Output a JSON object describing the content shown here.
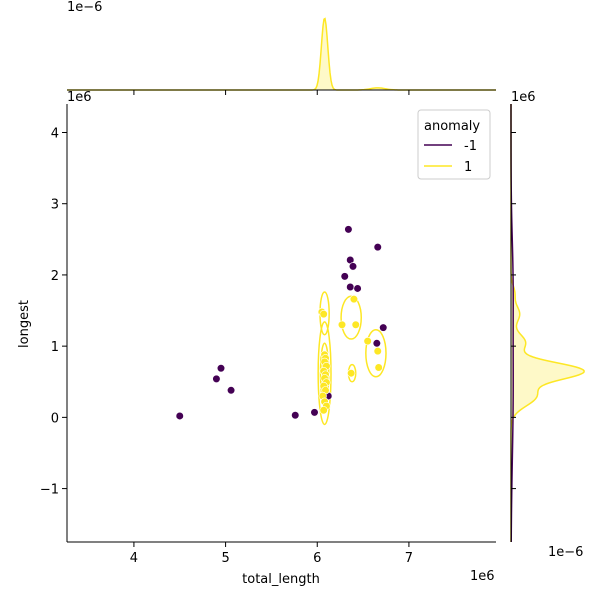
{
  "chart_data": {
    "type": "scatter",
    "xlabel": "total_length",
    "ylabel": "longest",
    "x_scale_label": "1e6",
    "y_scale_label": "1e6",
    "top_marg_scale_label": "1e−6",
    "right_marg_top_label": "1e6",
    "right_marg_scale_label": "1e−6",
    "xlim": [
      3.27,
      7.95
    ],
    "ylim": [
      -1.75,
      4.4
    ],
    "x_ticks": [
      4,
      5,
      6,
      7
    ],
    "x_tick_labels": [
      "4",
      "5",
      "6",
      "7"
    ],
    "y_ticks": [
      -1,
      0,
      1,
      2,
      3,
      4
    ],
    "y_tick_labels": [
      "−1",
      "0",
      "1",
      "2",
      "3",
      "4"
    ],
    "legend": {
      "title": "anomaly",
      "placement": "top-right",
      "entries": [
        {
          "label": "-1",
          "color": "#440154"
        },
        {
          "label": "1",
          "color": "#fde725"
        }
      ]
    },
    "series": [
      {
        "name": "-1",
        "color": "#440154",
        "points": [
          [
            4.5,
            0.02
          ],
          [
            4.9,
            0.54
          ],
          [
            4.95,
            0.69
          ],
          [
            5.06,
            0.38
          ],
          [
            5.76,
            0.03
          ],
          [
            5.97,
            0.07
          ],
          [
            6.12,
            0.3
          ],
          [
            6.3,
            1.98
          ],
          [
            6.34,
            2.64
          ],
          [
            6.36,
            2.21
          ],
          [
            6.39,
            2.12
          ],
          [
            6.36,
            1.83
          ],
          [
            6.44,
            1.81
          ],
          [
            6.66,
            2.39
          ],
          [
            6.65,
            1.04
          ],
          [
            6.72,
            1.26
          ]
        ]
      },
      {
        "name": "1",
        "color": "#fde725",
        "points": [
          [
            6.05,
            1.48
          ],
          [
            6.07,
            1.45
          ],
          [
            6.08,
            0.88
          ],
          [
            6.09,
            0.83
          ],
          [
            6.08,
            0.78
          ],
          [
            6.1,
            0.72
          ],
          [
            6.07,
            0.65
          ],
          [
            6.09,
            0.6
          ],
          [
            6.08,
            0.55
          ],
          [
            6.1,
            0.49
          ],
          [
            6.07,
            0.44
          ],
          [
            6.09,
            0.38
          ],
          [
            6.06,
            0.3
          ],
          [
            6.08,
            0.22
          ],
          [
            6.1,
            0.16
          ],
          [
            6.07,
            0.1
          ],
          [
            6.27,
            1.3
          ],
          [
            6.4,
            1.66
          ],
          [
            6.42,
            1.3
          ],
          [
            6.37,
            0.62
          ],
          [
            6.55,
            1.07
          ],
          [
            6.66,
            0.93
          ],
          [
            6.67,
            0.7
          ]
        ]
      }
    ],
    "kde_contours": [
      {
        "series": "1",
        "cx": 6.08,
        "cy": 0.62,
        "rx": 0.07,
        "ry": 0.72
      },
      {
        "series": "1",
        "cx": 6.08,
        "cy": 0.62,
        "rx": 0.045,
        "ry": 0.42
      },
      {
        "series": "1",
        "cx": 6.08,
        "cy": 0.62,
        "rx": 0.025,
        "ry": 0.24
      },
      {
        "series": "1",
        "cx": 6.08,
        "cy": 1.46,
        "rx": 0.05,
        "ry": 0.3
      },
      {
        "series": "1",
        "cx": 6.37,
        "cy": 1.4,
        "rx": 0.11,
        "ry": 0.3
      },
      {
        "series": "1",
        "cx": 6.38,
        "cy": 0.62,
        "rx": 0.04,
        "ry": 0.12
      },
      {
        "series": "1",
        "cx": 6.64,
        "cy": 0.9,
        "rx": 0.11,
        "ry": 0.33
      }
    ],
    "top_marginal": {
      "series": "1",
      "color": "#fde725",
      "peak_x": 6.08,
      "peak_width": 0.035,
      "secondary_x": 6.66,
      "secondary_height": 0.03
    },
    "right_marginal": {
      "series": [
        {
          "name": "1",
          "color": "#fde725",
          "bumps": [
            [
              0.65,
              1.0,
              0.12
            ],
            [
              0.3,
              0.35,
              0.14
            ],
            [
              1.05,
              0.2,
              0.12
            ],
            [
              1.45,
              0.12,
              0.12
            ],
            [
              1.75,
              0.05,
              0.1
            ]
          ]
        },
        {
          "name": "-1",
          "color": "#440154",
          "bumps": [
            [
              0.4,
              0.03,
              1.0
            ],
            [
              2.0,
              0.02,
              0.6
            ]
          ]
        }
      ]
    }
  }
}
